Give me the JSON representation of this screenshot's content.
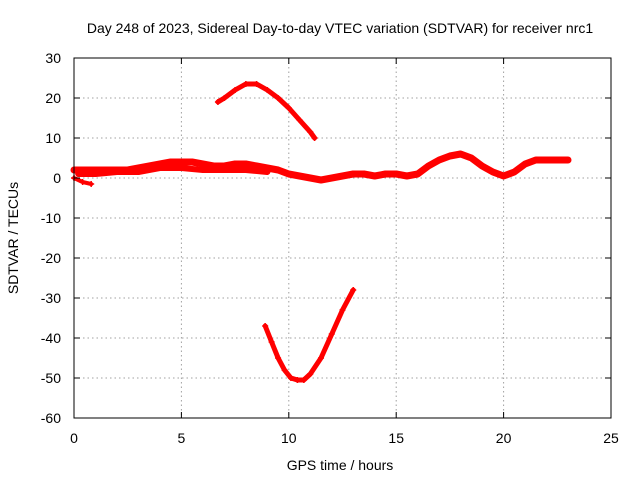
{
  "chart_data": {
    "type": "line",
    "title": "Day 248 of 2023, Sidereal Day-to-day VTEC variation (SDTVAR) for receiver nrc1",
    "xlabel": "GPS time / hours",
    "ylabel": "SDTVAR / TECUs",
    "xlim": [
      0,
      25
    ],
    "ylim": [
      -60,
      30
    ],
    "xticks": [
      0,
      5,
      10,
      15,
      20,
      25
    ],
    "yticks": [
      -60,
      -50,
      -40,
      -30,
      -20,
      -10,
      0,
      10,
      20,
      30
    ],
    "grid": true,
    "color": "#ff0000",
    "series": [
      {
        "name": "main band",
        "x": [
          0.0,
          0.5,
          1.0,
          1.5,
          2.0,
          2.5,
          3.0,
          3.5,
          4.0,
          4.5,
          5.0,
          5.5,
          6.0,
          6.5,
          7.0,
          7.5,
          8.0,
          8.5,
          9.0,
          9.5,
          10.0,
          10.5,
          11.0,
          11.5,
          12.0,
          12.5,
          13.0,
          13.5,
          14.0,
          14.5,
          15.0,
          15.5,
          16.0,
          16.5,
          17.0,
          17.5,
          18.0,
          18.5,
          19.0,
          19.5,
          20.0,
          20.5,
          21.0,
          21.5,
          22.0,
          22.5,
          23.0
        ],
        "y": [
          2,
          2,
          2,
          2,
          2,
          2,
          2.5,
          3,
          3.5,
          4,
          4,
          4,
          3.5,
          3,
          3,
          3.5,
          3.5,
          3,
          2.5,
          2,
          1,
          0.5,
          0,
          -0.5,
          0,
          0.5,
          1,
          1,
          0.5,
          1,
          1,
          0.5,
          1,
          3,
          4.5,
          5.5,
          6,
          5,
          3,
          1.5,
          0.5,
          1.5,
          3.5,
          4.5,
          4.5,
          4.5,
          4.5
        ]
      },
      {
        "name": "band spread",
        "x": [
          0.2,
          1.0,
          2.0,
          3.0,
          4.0,
          5.0,
          6.0,
          7.0,
          8.0,
          9.0
        ],
        "y": [
          1,
          1,
          1.5,
          1.5,
          2.5,
          2.5,
          2,
          2,
          2,
          1.5
        ]
      },
      {
        "name": "early dip",
        "x": [
          0.0,
          0.4,
          0.8
        ],
        "y": [
          0,
          -1,
          -1.5
        ]
      },
      {
        "name": "upper arc",
        "x": [
          6.7,
          7.0,
          7.5,
          8.0,
          8.5,
          9.0,
          9.5,
          10.0,
          10.5,
          11.0,
          11.2
        ],
        "y": [
          19,
          20,
          22,
          23.5,
          23.5,
          22,
          20,
          17.5,
          14.5,
          11.5,
          10
        ]
      },
      {
        "name": "lower arc",
        "x": [
          8.9,
          9.2,
          9.5,
          9.8,
          10.1,
          10.4,
          10.7,
          11.0,
          11.5,
          12.0,
          12.5,
          13.0
        ],
        "y": [
          -37,
          -41,
          -45,
          -48,
          -50,
          -50.5,
          -50.5,
          -49,
          -45,
          -39,
          -33,
          -28
        ]
      }
    ]
  }
}
